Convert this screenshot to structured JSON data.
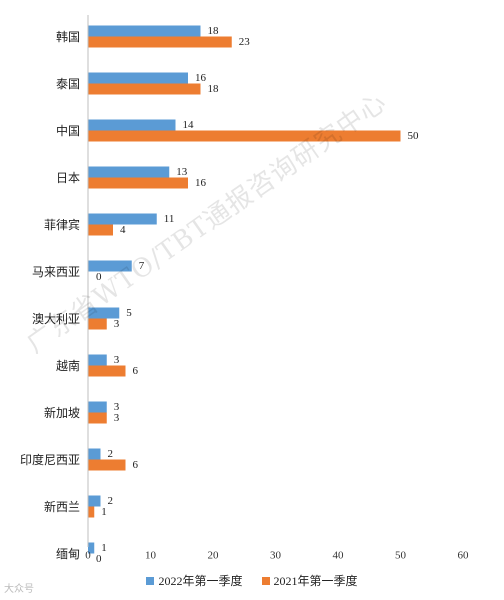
{
  "chart_data": {
    "type": "bar",
    "orientation": "horizontal",
    "categories": [
      "韩国",
      "泰国",
      "中国",
      "日本",
      "菲律宾",
      "马来西亚",
      "澳大利亚",
      "越南",
      "新加坡",
      "印度尼西亚",
      "新西兰",
      "缅甸"
    ],
    "series": [
      {
        "name": "2022年第一季度",
        "values": [
          18,
          16,
          14,
          13,
          11,
          7,
          5,
          3,
          3,
          2,
          2,
          1
        ],
        "color": "#5b9bd5"
      },
      {
        "name": "2021年第一季度",
        "values": [
          23,
          18,
          50,
          16,
          4,
          0,
          3,
          6,
          3,
          6,
          1,
          0
        ],
        "color": "#ed7d31"
      }
    ],
    "xlim": [
      0,
      60
    ],
    "xticks": [
      0,
      10,
      20,
      30,
      40,
      50,
      60
    ],
    "grid": false,
    "legend_position": "bottom"
  },
  "watermark": "广东省WTO/TBT通报咨询研究中心",
  "corner_logo": "大众号"
}
